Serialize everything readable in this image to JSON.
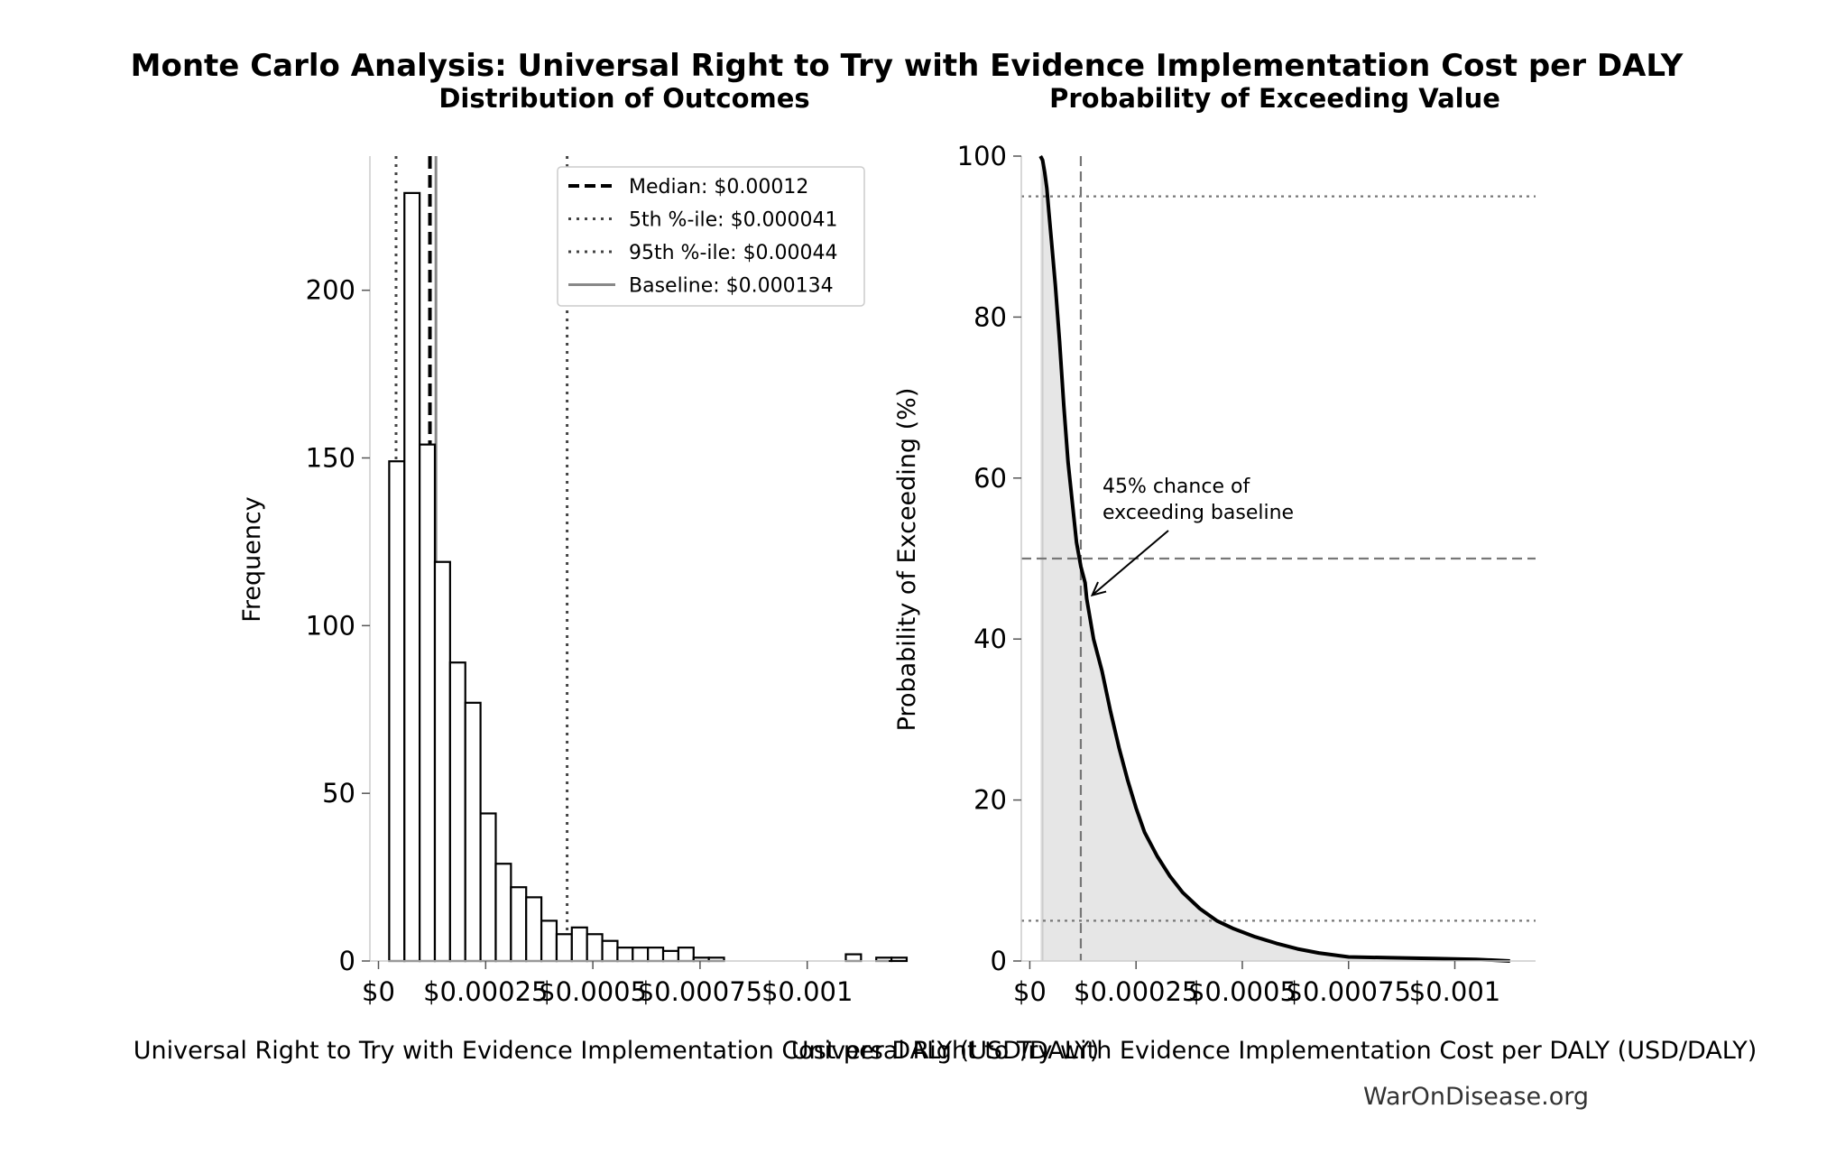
{
  "figure": {
    "title": "Monte Carlo Analysis: Universal Right to Try with Evidence Implementation Cost per DALY",
    "watermark": "WarOnDisease.org"
  },
  "chart_data": [
    {
      "type": "bar",
      "subtype": "histogram",
      "title": "Distribution of Outcomes",
      "xlabel": "Universal Right to Try with Evidence Implementation Cost per DALY (USD/DALY)",
      "ylabel": "Frequency",
      "xlim": [
        -2e-05,
        0.00119
      ],
      "ylim": [
        0,
        240
      ],
      "xticks": [
        0,
        0.00025,
        0.0005,
        0.00075,
        0.001
      ],
      "xtick_labels": [
        "$0",
        "$0.00025",
        "$0.0005",
        "$0.00075",
        "$0.001"
      ],
      "yticks": [
        0,
        50,
        100,
        150,
        200
      ],
      "bin_width": 3.55e-05,
      "bin_start": 2.5e-05,
      "counts": [
        149,
        229,
        154,
        119,
        89,
        77,
        44,
        29,
        22,
        19,
        12,
        8,
        10,
        8,
        6,
        4,
        4,
        4,
        3,
        4,
        1,
        1,
        0,
        0,
        0,
        0,
        0,
        0,
        0,
        0,
        2,
        0,
        1,
        1
      ],
      "reference_lines": [
        {
          "label": "Median: $0.00012",
          "x": 0.00012,
          "style": "dashed",
          "color": "#000000"
        },
        {
          "label": "5th %-ile: $0.000041",
          "x": 4.1e-05,
          "style": "dotted",
          "color": "#444444"
        },
        {
          "label": "95th %-ile: $0.00044",
          "x": 0.00044,
          "style": "dotted",
          "color": "#444444"
        },
        {
          "label": "Baseline: $0.000134",
          "x": 0.000134,
          "style": "solid",
          "color": "#888888"
        }
      ],
      "legend": "top-right",
      "grid": false
    },
    {
      "type": "line",
      "subtype": "exceedance",
      "title": "Probability of Exceeding Value",
      "xlabel": "Universal Right to Try with Evidence Implementation Cost per DALY (USD/DALY)",
      "ylabel": "Probability of Exceeding (%)",
      "xlim": [
        -2e-05,
        0.00119
      ],
      "ylim": [
        0,
        100
      ],
      "xticks": [
        0,
        0.00025,
        0.0005,
        0.00075,
        0.001
      ],
      "xtick_labels": [
        "$0",
        "$0.00025",
        "$0.0005",
        "$0.00075",
        "$0.001"
      ],
      "yticks": [
        0,
        20,
        40,
        60,
        80,
        100
      ],
      "curve": {
        "x": [
          2.5e-05,
          3e-05,
          3.5e-05,
          4e-05,
          4.5e-05,
          5e-05,
          6e-05,
          7e-05,
          8e-05,
          9e-05,
          0.0001,
          0.00011,
          0.00012,
          0.00013,
          0.000134,
          0.00015,
          0.00017,
          0.00019,
          0.00021,
          0.00023,
          0.00025,
          0.00027,
          0.0003,
          0.00033,
          0.00036,
          0.0004,
          0.00044,
          0.00048,
          0.00053,
          0.00058,
          0.00063,
          0.00068,
          0.00075,
          0.00085,
          0.00095,
          0.00105,
          0.00113
        ],
        "y": [
          100,
          99.5,
          98,
          96,
          93,
          90,
          84,
          77,
          69,
          62,
          57,
          52,
          49,
          47,
          45,
          40,
          36,
          31,
          26.5,
          22.5,
          19,
          16,
          13,
          10.5,
          8.5,
          6.5,
          5,
          4,
          3,
          2.2,
          1.5,
          1,
          0.5,
          0.4,
          0.3,
          0.2,
          0
        ]
      },
      "reference_lines": [
        {
          "orientation": "vertical",
          "x": 0.00012,
          "style": "dashed",
          "color": "#777777"
        },
        {
          "orientation": "vertical",
          "x": 3e-05,
          "style": "solid",
          "color": "#cccccc"
        },
        {
          "orientation": "horizontal",
          "y": 95,
          "style": "dotted",
          "color": "#777777"
        },
        {
          "orientation": "horizontal",
          "y": 50,
          "style": "dashed",
          "color": "#777777"
        },
        {
          "orientation": "horizontal",
          "y": 5,
          "style": "dotted",
          "color": "#777777"
        }
      ],
      "annotation": {
        "lines": [
          "45% chance of",
          "exceeding baseline"
        ],
        "point": {
          "x": 0.000134,
          "y": 45
        }
      },
      "fill_under_curve": true,
      "grid": false
    }
  ]
}
